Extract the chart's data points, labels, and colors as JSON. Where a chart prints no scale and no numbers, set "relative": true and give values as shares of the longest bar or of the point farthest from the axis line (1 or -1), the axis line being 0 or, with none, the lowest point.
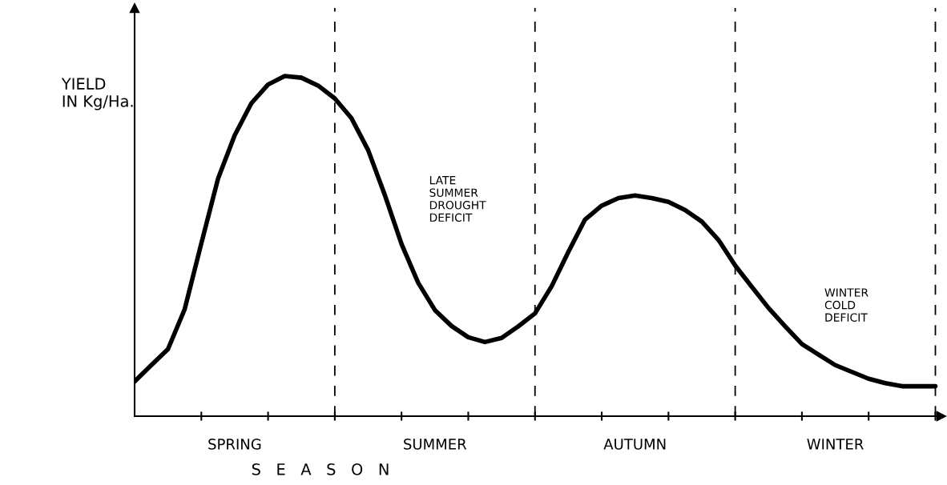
{
  "chart_data": {
    "type": "line",
    "relative": true,
    "xlabel": "S   E   A   S   O   N",
    "ylabel": "YIELD\nIN Kg/Ha.",
    "categories": [
      null,
      null,
      null,
      null,
      null,
      null,
      "SPRING",
      null,
      null,
      null,
      null,
      null,
      null,
      null,
      null,
      null,
      null,
      null,
      "SUMMER",
      null,
      null,
      null,
      null,
      null,
      null,
      null,
      null,
      null,
      null,
      null,
      "AUTUMN",
      null,
      null,
      null,
      null,
      null,
      null,
      null,
      null,
      null,
      null,
      null,
      "WINTER",
      null,
      null,
      null,
      null,
      null,
      null
    ],
    "series": [
      {
        "color": "#000000",
        "values": [
          0.102,
          0.15,
          0.197,
          0.314,
          0.508,
          0.698,
          0.826,
          0.92,
          0.975,
          1.0,
          0.995,
          0.972,
          0.934,
          0.876,
          0.782,
          0.65,
          0.506,
          0.392,
          0.312,
          0.265,
          0.232,
          0.218,
          0.23,
          0.264,
          0.302,
          0.382,
          0.483,
          0.578,
          0.619,
          0.641,
          0.649,
          0.641,
          0.63,
          0.606,
          0.572,
          0.518,
          0.443,
          0.38,
          0.318,
          0.264,
          0.212,
          0.181,
          0.15,
          0.13,
          0.11,
          0.097,
          0.088,
          0.088,
          0.088
        ]
      }
    ],
    "annotations": [
      "LATE\nSUMMER\nDROUGHT\nDEFICIT",
      "WINTER\nCOLD\nDEFICIT"
    ],
    "grid": "x",
    "legend": false,
    "line_style": "solid",
    "marker": "none"
  }
}
